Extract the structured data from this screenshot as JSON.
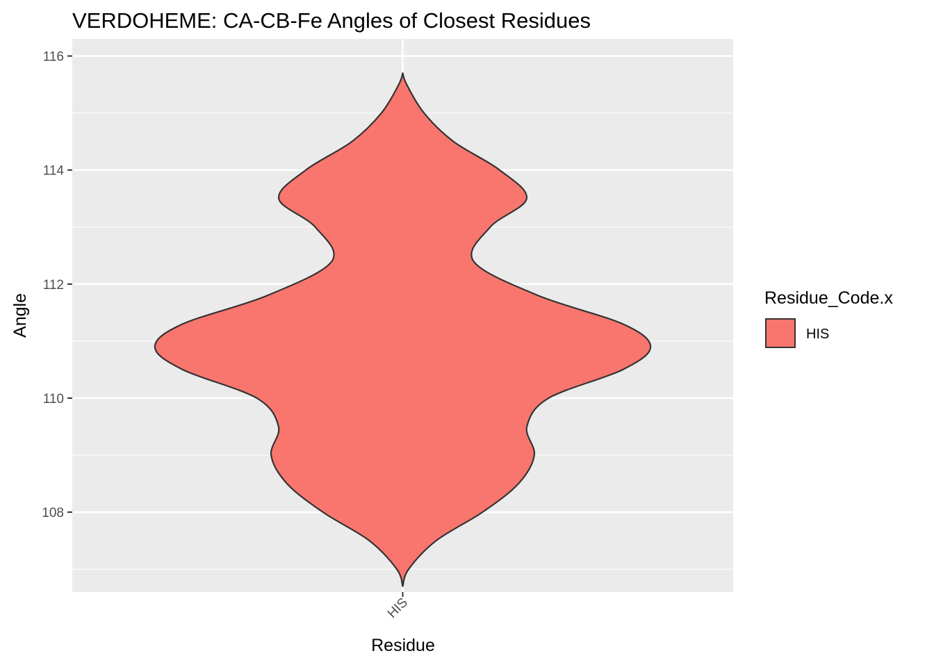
{
  "chart_data": {
    "type": "violin",
    "title": "VERDOHEME: CA-CB-Fe Angles of Closest Residues",
    "xlabel": "Residue",
    "ylabel": "Angle",
    "categories": [
      "HIS"
    ],
    "ylim": [
      106.6,
      116.3
    ],
    "yticks": [
      108,
      110,
      112,
      114,
      116
    ],
    "grid": true,
    "legend": {
      "title": "Residue_Code.x",
      "position": "right",
      "entries": [
        {
          "label": "HIS",
          "color": "#F8766D"
        }
      ]
    },
    "series": [
      {
        "category": "HIS",
        "fill": "#F8766D",
        "stroke": "#333333",
        "density_profile": [
          {
            "angle": 106.7,
            "width": 0.0
          },
          {
            "angle": 107.0,
            "width": 0.024
          },
          {
            "angle": 107.5,
            "width": 0.135
          },
          {
            "angle": 108.0,
            "width": 0.322
          },
          {
            "angle": 108.5,
            "width": 0.467
          },
          {
            "angle": 109.0,
            "width": 0.531
          },
          {
            "angle": 109.5,
            "width": 0.501
          },
          {
            "angle": 110.0,
            "width": 0.589
          },
          {
            "angle": 110.5,
            "width": 0.888
          },
          {
            "angle": 110.9,
            "width": 1.0
          },
          {
            "angle": 111.3,
            "width": 0.888
          },
          {
            "angle": 111.8,
            "width": 0.546
          },
          {
            "angle": 112.4,
            "width": 0.286
          },
          {
            "angle": 113.0,
            "width": 0.353
          },
          {
            "angle": 113.5,
            "width": 0.5
          },
          {
            "angle": 114.0,
            "width": 0.391
          },
          {
            "angle": 114.5,
            "width": 0.205
          },
          {
            "angle": 115.0,
            "width": 0.086
          },
          {
            "angle": 115.5,
            "width": 0.016
          },
          {
            "angle": 115.7,
            "width": 0.0
          }
        ]
      }
    ]
  }
}
